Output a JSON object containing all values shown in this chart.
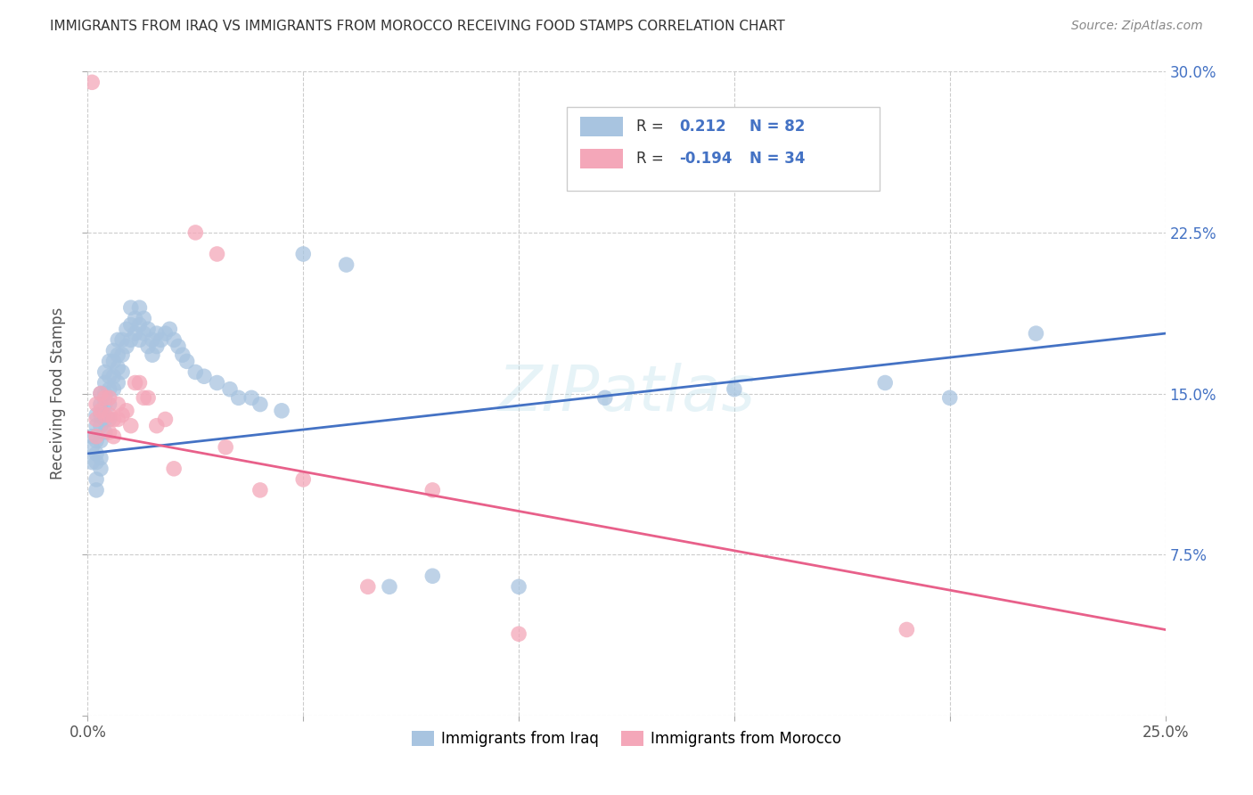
{
  "title": "IMMIGRANTS FROM IRAQ VS IMMIGRANTS FROM MOROCCO RECEIVING FOOD STAMPS CORRELATION CHART",
  "source": "Source: ZipAtlas.com",
  "ylabel": "Receiving Food Stamps",
  "xlim": [
    0.0,
    0.25
  ],
  "ylim": [
    0.0,
    0.3
  ],
  "xticks": [
    0.0,
    0.05,
    0.1,
    0.15,
    0.2,
    0.25
  ],
  "yticks": [
    0.0,
    0.075,
    0.15,
    0.225,
    0.3
  ],
  "iraq_color": "#a8c4e0",
  "iraq_line_color": "#4472C4",
  "morocco_color": "#f4a7b9",
  "morocco_line_color": "#e8608a",
  "iraq_R": 0.212,
  "iraq_N": 82,
  "morocco_R": -0.194,
  "morocco_N": 34,
  "background_color": "#ffffff",
  "grid_color": "#cccccc",
  "watermark": "ZIPatlas",
  "iraq_line_x0": 0.0,
  "iraq_line_y0": 0.122,
  "iraq_line_x1": 0.25,
  "iraq_line_y1": 0.178,
  "morocco_line_x0": 0.0,
  "morocco_line_y0": 0.132,
  "morocco_line_x1": 0.25,
  "morocco_line_y1": 0.04,
  "iraq_x": [
    0.001,
    0.001,
    0.001,
    0.002,
    0.002,
    0.002,
    0.002,
    0.002,
    0.002,
    0.002,
    0.003,
    0.003,
    0.003,
    0.003,
    0.003,
    0.003,
    0.003,
    0.004,
    0.004,
    0.004,
    0.004,
    0.004,
    0.004,
    0.005,
    0.005,
    0.005,
    0.005,
    0.005,
    0.006,
    0.006,
    0.006,
    0.006,
    0.007,
    0.007,
    0.007,
    0.007,
    0.008,
    0.008,
    0.008,
    0.009,
    0.009,
    0.01,
    0.01,
    0.01,
    0.011,
    0.011,
    0.012,
    0.012,
    0.012,
    0.013,
    0.013,
    0.014,
    0.014,
    0.015,
    0.015,
    0.016,
    0.016,
    0.017,
    0.018,
    0.019,
    0.02,
    0.021,
    0.022,
    0.023,
    0.025,
    0.027,
    0.03,
    0.033,
    0.035,
    0.038,
    0.04,
    0.045,
    0.05,
    0.06,
    0.07,
    0.08,
    0.1,
    0.12,
    0.15,
    0.185,
    0.2,
    0.22
  ],
  "iraq_y": [
    0.13,
    0.125,
    0.118,
    0.14,
    0.135,
    0.128,
    0.122,
    0.118,
    0.11,
    0.105,
    0.15,
    0.145,
    0.14,
    0.135,
    0.128,
    0.12,
    0.115,
    0.16,
    0.155,
    0.15,
    0.145,
    0.138,
    0.132,
    0.165,
    0.158,
    0.152,
    0.145,
    0.138,
    0.17,
    0.165,
    0.158,
    0.152,
    0.175,
    0.168,
    0.162,
    0.155,
    0.175,
    0.168,
    0.16,
    0.18,
    0.172,
    0.19,
    0.182,
    0.175,
    0.185,
    0.178,
    0.19,
    0.182,
    0.175,
    0.185,
    0.178,
    0.18,
    0.172,
    0.175,
    0.168,
    0.178,
    0.172,
    0.175,
    0.178,
    0.18,
    0.175,
    0.172,
    0.168,
    0.165,
    0.16,
    0.158,
    0.155,
    0.152,
    0.148,
    0.148,
    0.145,
    0.142,
    0.215,
    0.21,
    0.06,
    0.065,
    0.06,
    0.148,
    0.152,
    0.155,
    0.148,
    0.178
  ],
  "morocco_x": [
    0.001,
    0.002,
    0.002,
    0.002,
    0.003,
    0.003,
    0.004,
    0.004,
    0.005,
    0.005,
    0.005,
    0.006,
    0.006,
    0.007,
    0.007,
    0.008,
    0.009,
    0.01,
    0.011,
    0.012,
    0.013,
    0.014,
    0.016,
    0.018,
    0.02,
    0.025,
    0.03,
    0.032,
    0.04,
    0.05,
    0.065,
    0.08,
    0.1,
    0.19
  ],
  "morocco_y": [
    0.295,
    0.145,
    0.138,
    0.13,
    0.15,
    0.142,
    0.148,
    0.14,
    0.148,
    0.14,
    0.132,
    0.138,
    0.13,
    0.145,
    0.138,
    0.14,
    0.142,
    0.135,
    0.155,
    0.155,
    0.148,
    0.148,
    0.135,
    0.138,
    0.115,
    0.225,
    0.215,
    0.125,
    0.105,
    0.11,
    0.06,
    0.105,
    0.038,
    0.04
  ]
}
